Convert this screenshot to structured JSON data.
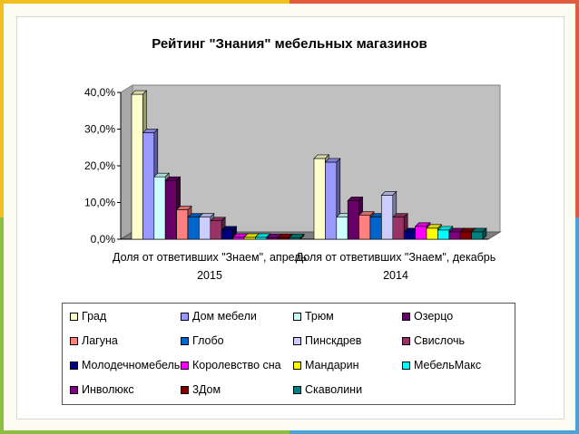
{
  "slide": {
    "border_colors": {
      "top_left": "#f2c01e",
      "top_right": "#e05a3c",
      "bottom_left": "#8cbf3f",
      "right": "#4aa3d8"
    }
  },
  "chart_data": {
    "type": "bar",
    "title": "Рейтинг \"Знания\" мебельных магазинов",
    "categories": [
      [
        "Доля от ответивших \"Знаем\", апрель",
        "2015"
      ],
      [
        "Доля от ответивших \"Знаем\", декабрь",
        "2014"
      ]
    ],
    "ylim": [
      0,
      40
    ],
    "yticks": [
      "0,0%",
      "10,0%",
      "20,0%",
      "30,0%",
      "40,0%"
    ],
    "grid": false,
    "legend_position": "bottom",
    "series": [
      {
        "name": "Град",
        "color": "#ffffcc",
        "values": [
          39.5,
          22
        ]
      },
      {
        "name": "Дом мебели",
        "color": "#9999ff",
        "values": [
          29,
          21
        ]
      },
      {
        "name": "Трюм",
        "color": "#ccffff",
        "values": [
          17,
          6
        ]
      },
      {
        "name": "Озерцо",
        "color": "#660066",
        "values": [
          16,
          10.5
        ]
      },
      {
        "name": "Лагуна",
        "color": "#ff8080",
        "values": [
          8,
          6.5
        ]
      },
      {
        "name": "Глобо",
        "color": "#0066cc",
        "values": [
          6,
          6
        ]
      },
      {
        "name": "Пинскдрев",
        "color": "#ccccff",
        "values": [
          6,
          12
        ]
      },
      {
        "name": "Свислочь",
        "color": "#993366",
        "values": [
          5,
          6
        ]
      },
      {
        "name": "Молодечномебель",
        "color": "#000080",
        "values": [
          2.5,
          2
        ]
      },
      {
        "name": "Королевство сна",
        "color": "#ff00ff",
        "values": [
          0.5,
          3.5
        ]
      },
      {
        "name": "Мандарин",
        "color": "#ffff00",
        "values": [
          0.5,
          3
        ]
      },
      {
        "name": "МебельМакс",
        "color": "#00ffff",
        "values": [
          0.5,
          2.5
        ]
      },
      {
        "name": "Инволюкс",
        "color": "#800080",
        "values": [
          0.4,
          2
        ]
      },
      {
        "name": "3Дом",
        "color": "#800000",
        "values": [
          0.4,
          2
        ]
      },
      {
        "name": "Скаволини",
        "color": "#008080",
        "values": [
          0.4,
          2
        ]
      }
    ]
  }
}
